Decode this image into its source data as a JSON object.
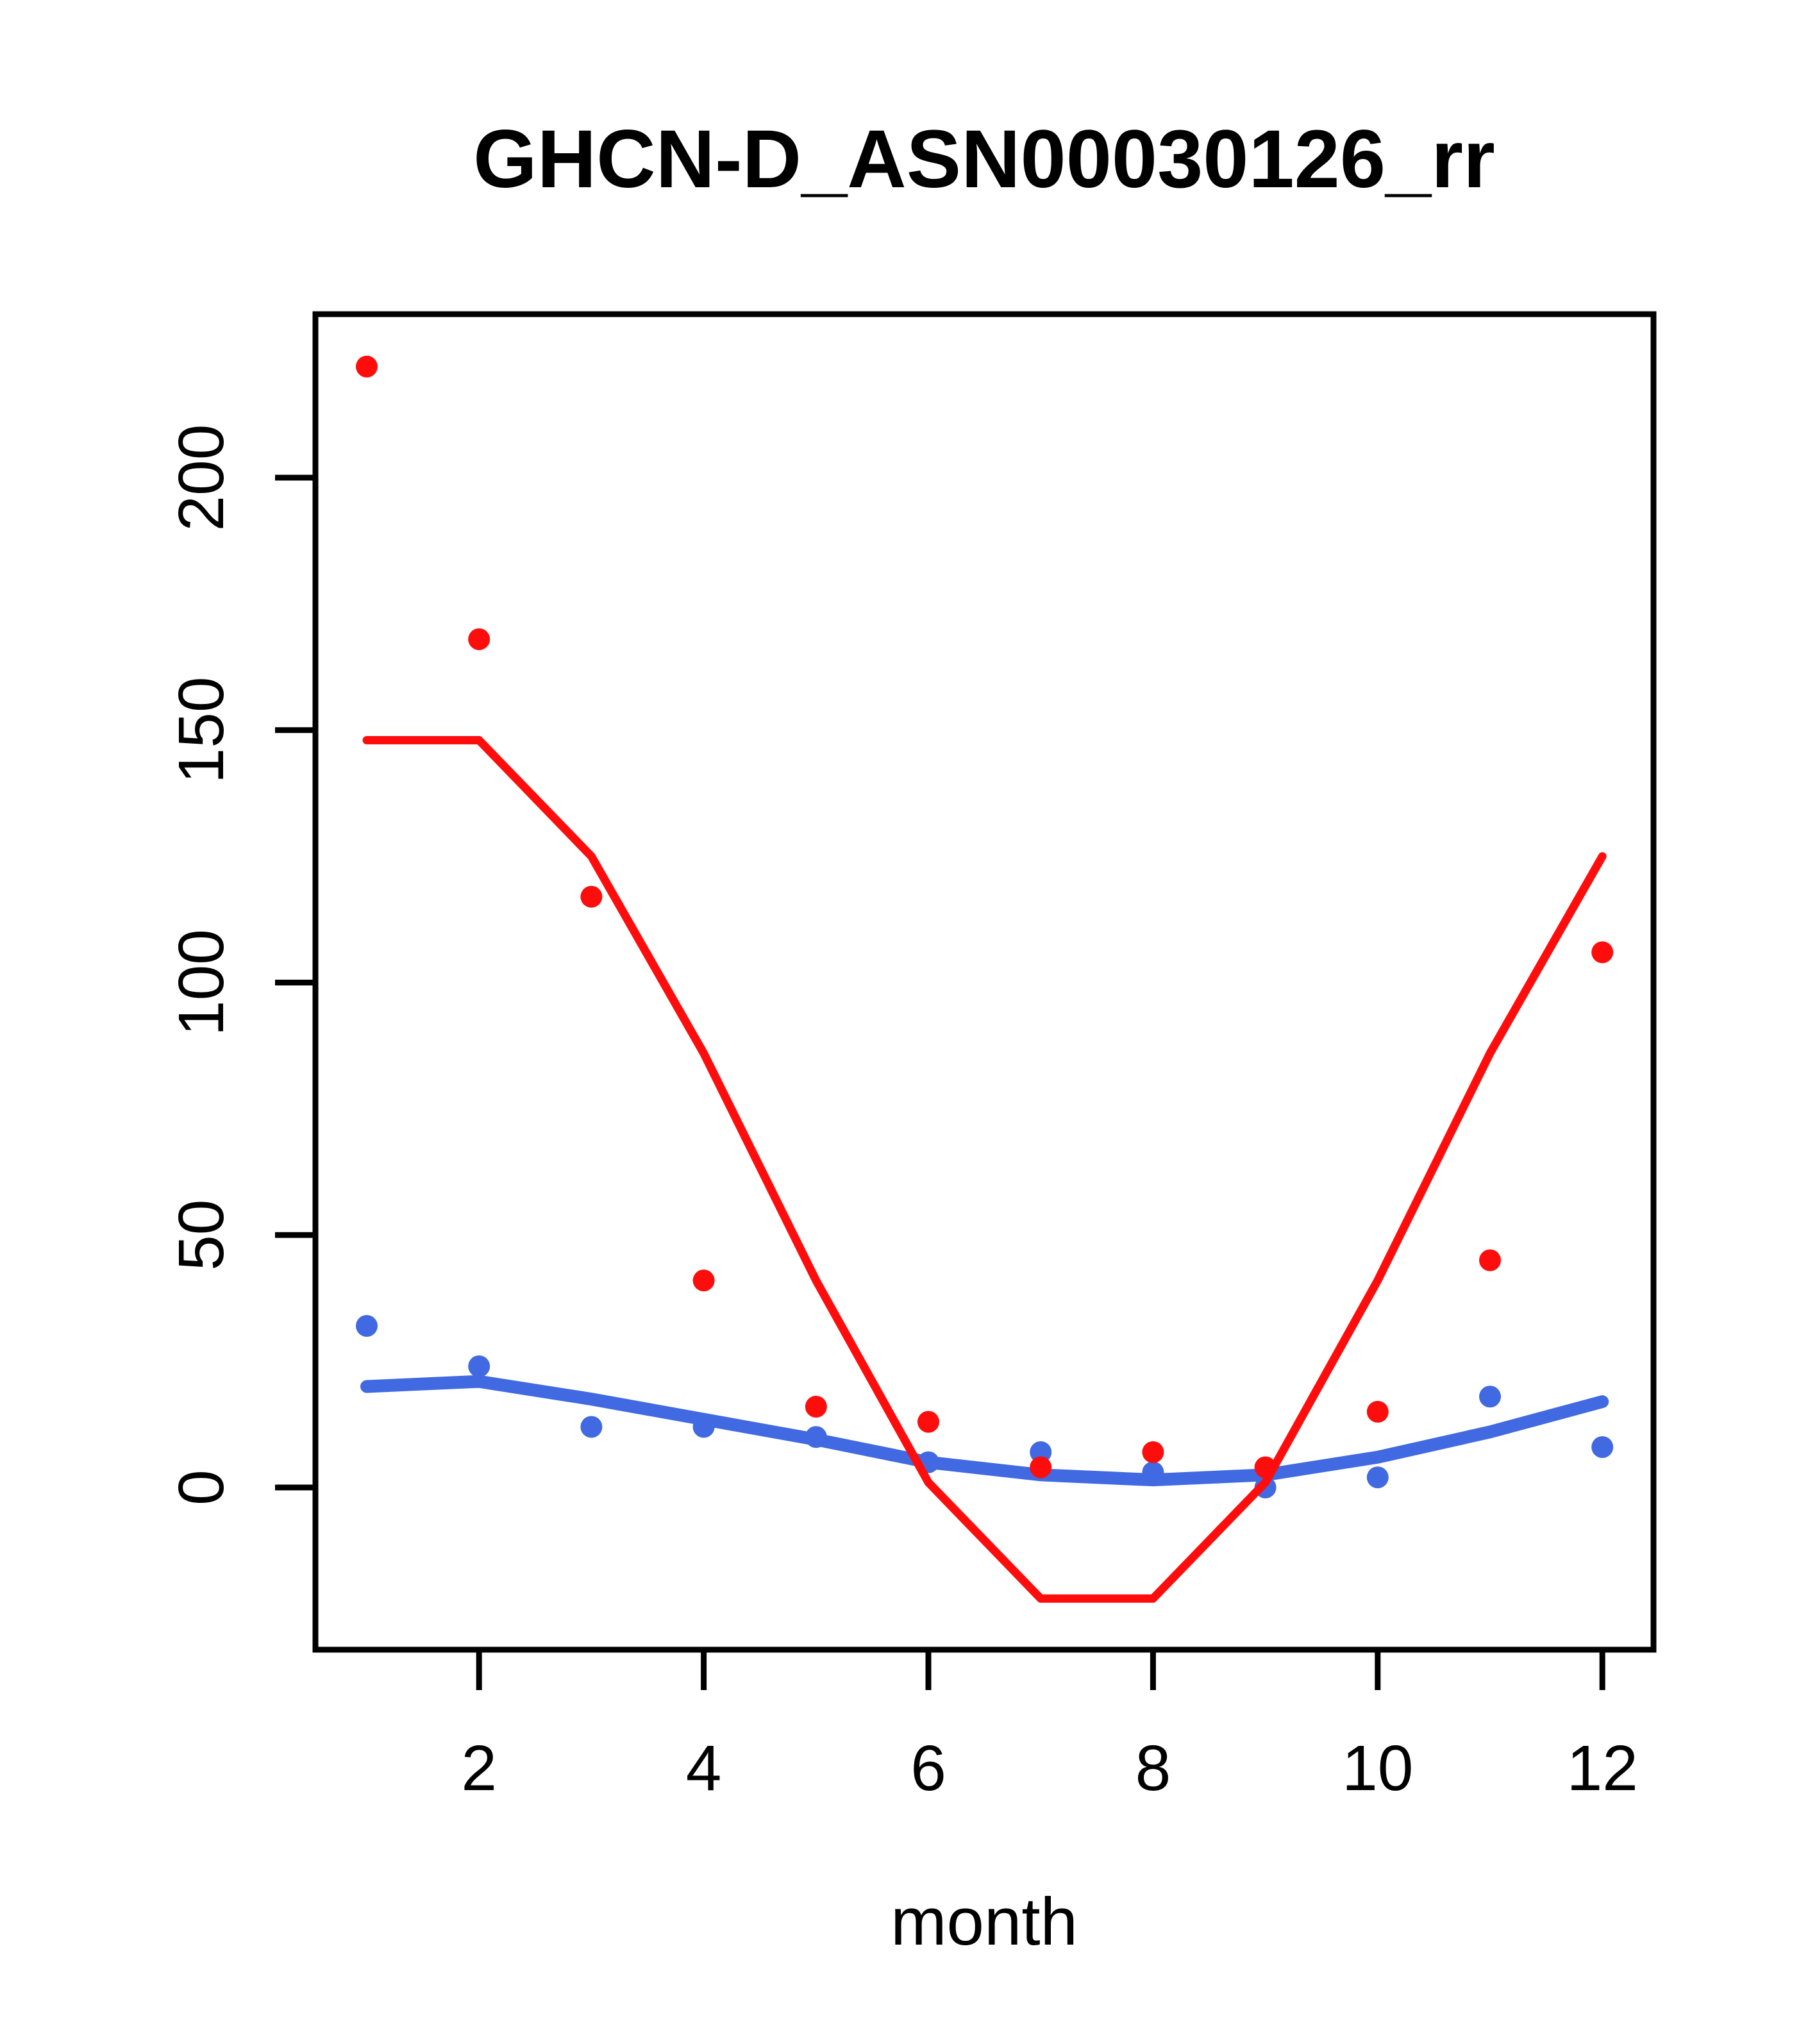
{
  "chart_data": {
    "type": "scatter",
    "title": "GHCN-D_ASN00030126_rr",
    "xlabel": "month",
    "ylabel": "",
    "x": [
      1,
      2,
      3,
      4,
      5,
      6,
      7,
      8,
      9,
      10,
      11,
      12
    ],
    "x_tick_labels": [
      2,
      4,
      6,
      8,
      10,
      12
    ],
    "y_tick_labels": [
      0,
      50,
      100,
      150,
      200
    ],
    "xlim": [
      0.56,
      12.44
    ],
    "ylim": [
      -32,
      232
    ],
    "grid": false,
    "legend": "none",
    "colors": {
      "red": "#FF0D0D",
      "blue": "#4169E1",
      "axis": "#000000",
      "background": "#FFFFFF"
    },
    "series": [
      {
        "name": "red-monthly-points",
        "type": "points",
        "color": "#FF0D0D",
        "values": [
          222,
          168,
          117,
          41,
          16,
          13,
          4,
          7,
          4,
          15,
          45,
          106
        ]
      },
      {
        "name": "blue-monthly-points",
        "type": "points",
        "color": "#4169E1",
        "values": [
          32,
          24,
          12,
          12,
          10,
          5,
          7,
          3,
          0,
          2,
          18,
          8
        ]
      },
      {
        "name": "red-fitted-line",
        "type": "line",
        "color": "#FF0D0D",
        "values": [
          148,
          148,
          125,
          86,
          41,
          1,
          -22,
          -22,
          1,
          41,
          86,
          125
        ]
      },
      {
        "name": "blue-fitted-line",
        "type": "line",
        "color": "#4169E1",
        "values": [
          20,
          21,
          17.5,
          13.5,
          9.5,
          5,
          2.5,
          1.5,
          2.5,
          6,
          11,
          17
        ]
      }
    ]
  }
}
